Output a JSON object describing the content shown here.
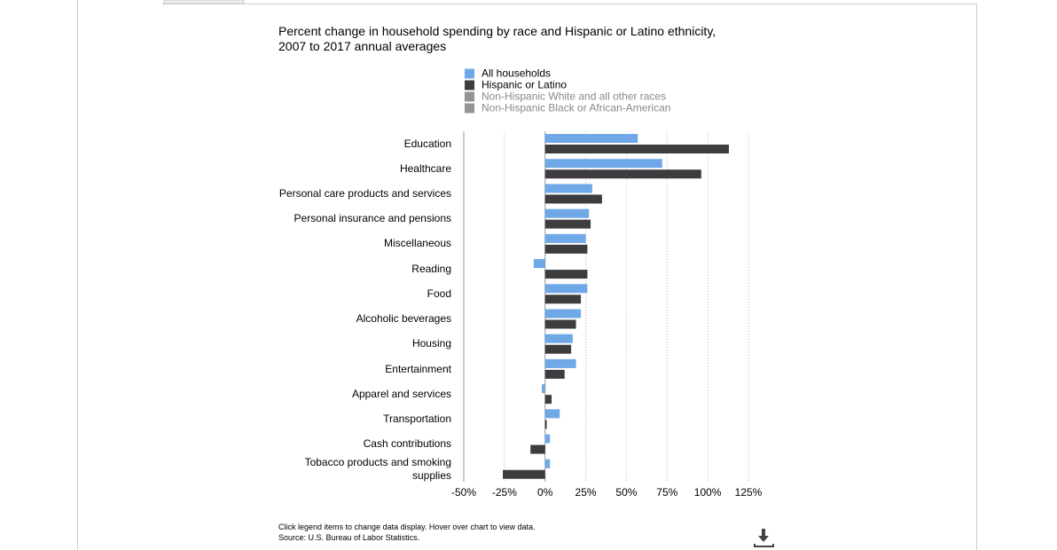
{
  "chart_data": {
    "type": "hbar",
    "title": "Percent change in household spending by race and Hispanic or Latino ethnicity, 2007 to 2017 annual averages",
    "categories": [
      "Education",
      "Healthcare",
      "Personal care products and services",
      "Personal insurance and pensions",
      "Miscellaneous",
      "Reading",
      "Food",
      "Alcoholic beverages",
      "Housing",
      "Entertainment",
      "Apparel and services",
      "Transportation",
      "Cash contributions",
      "Tobacco products and smoking supplies"
    ],
    "series": [
      {
        "name": "All households",
        "color": "#6fa8e6",
        "visible": true,
        "values": [
          57,
          72,
          29,
          27,
          25,
          -7,
          26,
          22,
          17,
          19,
          -2,
          9,
          3,
          3
        ]
      },
      {
        "name": "Hispanic or Latino",
        "color": "#3d3d40",
        "visible": true,
        "values": [
          113,
          96,
          35,
          28,
          26,
          26,
          22,
          19,
          16,
          12,
          4,
          1,
          -9,
          -26
        ]
      },
      {
        "name": "Non-Hispanic White and all other races",
        "color": "#888888",
        "visible": false,
        "values": [
          null,
          null,
          null,
          null,
          null,
          null,
          null,
          null,
          null,
          null,
          null,
          null,
          null,
          null
        ]
      },
      {
        "name": "Non-Hispanic Black or African-American",
        "color": "#888888",
        "visible": false,
        "values": [
          null,
          null,
          null,
          null,
          null,
          null,
          null,
          null,
          null,
          null,
          null,
          null,
          null,
          null
        ]
      }
    ],
    "xlim": [
      -50,
      125
    ],
    "xticks": [
      {
        "value": -50,
        "label": "-50%"
      },
      {
        "value": -25,
        "label": "-25%"
      },
      {
        "value": 0,
        "label": "0%"
      },
      {
        "value": 25,
        "label": "25%"
      },
      {
        "value": 50,
        "label": "50%"
      },
      {
        "value": 75,
        "label": "75%"
      },
      {
        "value": 100,
        "label": "100%"
      },
      {
        "value": 125,
        "label": "125%"
      }
    ],
    "grid": true,
    "notes": [
      "Click legend items to change data display. Hover over chart to view data.",
      "Source: U.S. Bureau of Labor Statistics."
    ]
  }
}
